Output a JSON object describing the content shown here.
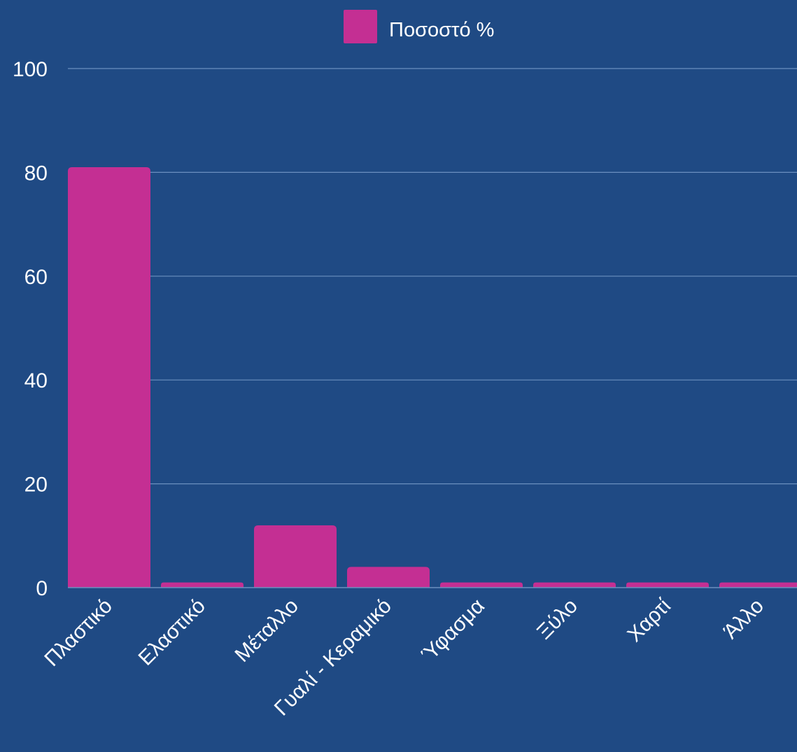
{
  "colors": {
    "background": "#1f4a84",
    "bar": "#c42f93",
    "gridline": "#6b8fbf",
    "text": "#ffffff"
  },
  "legend": {
    "label": "Ποσοστό %"
  },
  "chart_data": {
    "type": "bar",
    "title": "",
    "xlabel": "",
    "ylabel": "",
    "ylim": [
      0,
      100
    ],
    "yticks": [
      0,
      20,
      40,
      60,
      80,
      100
    ],
    "grid": true,
    "legend_position": "top-center",
    "categories": [
      "Πλαστικό",
      "Ελαστικό",
      "Μέταλλο",
      "Γυαλί - Κεραμικό",
      "Ύφασμα",
      "Ξύλο",
      "Χαρτί",
      "Άλλο"
    ],
    "series": [
      {
        "name": "Ποσοστό %",
        "values": [
          81,
          1,
          12,
          4,
          1,
          1,
          1,
          1
        ]
      }
    ]
  }
}
